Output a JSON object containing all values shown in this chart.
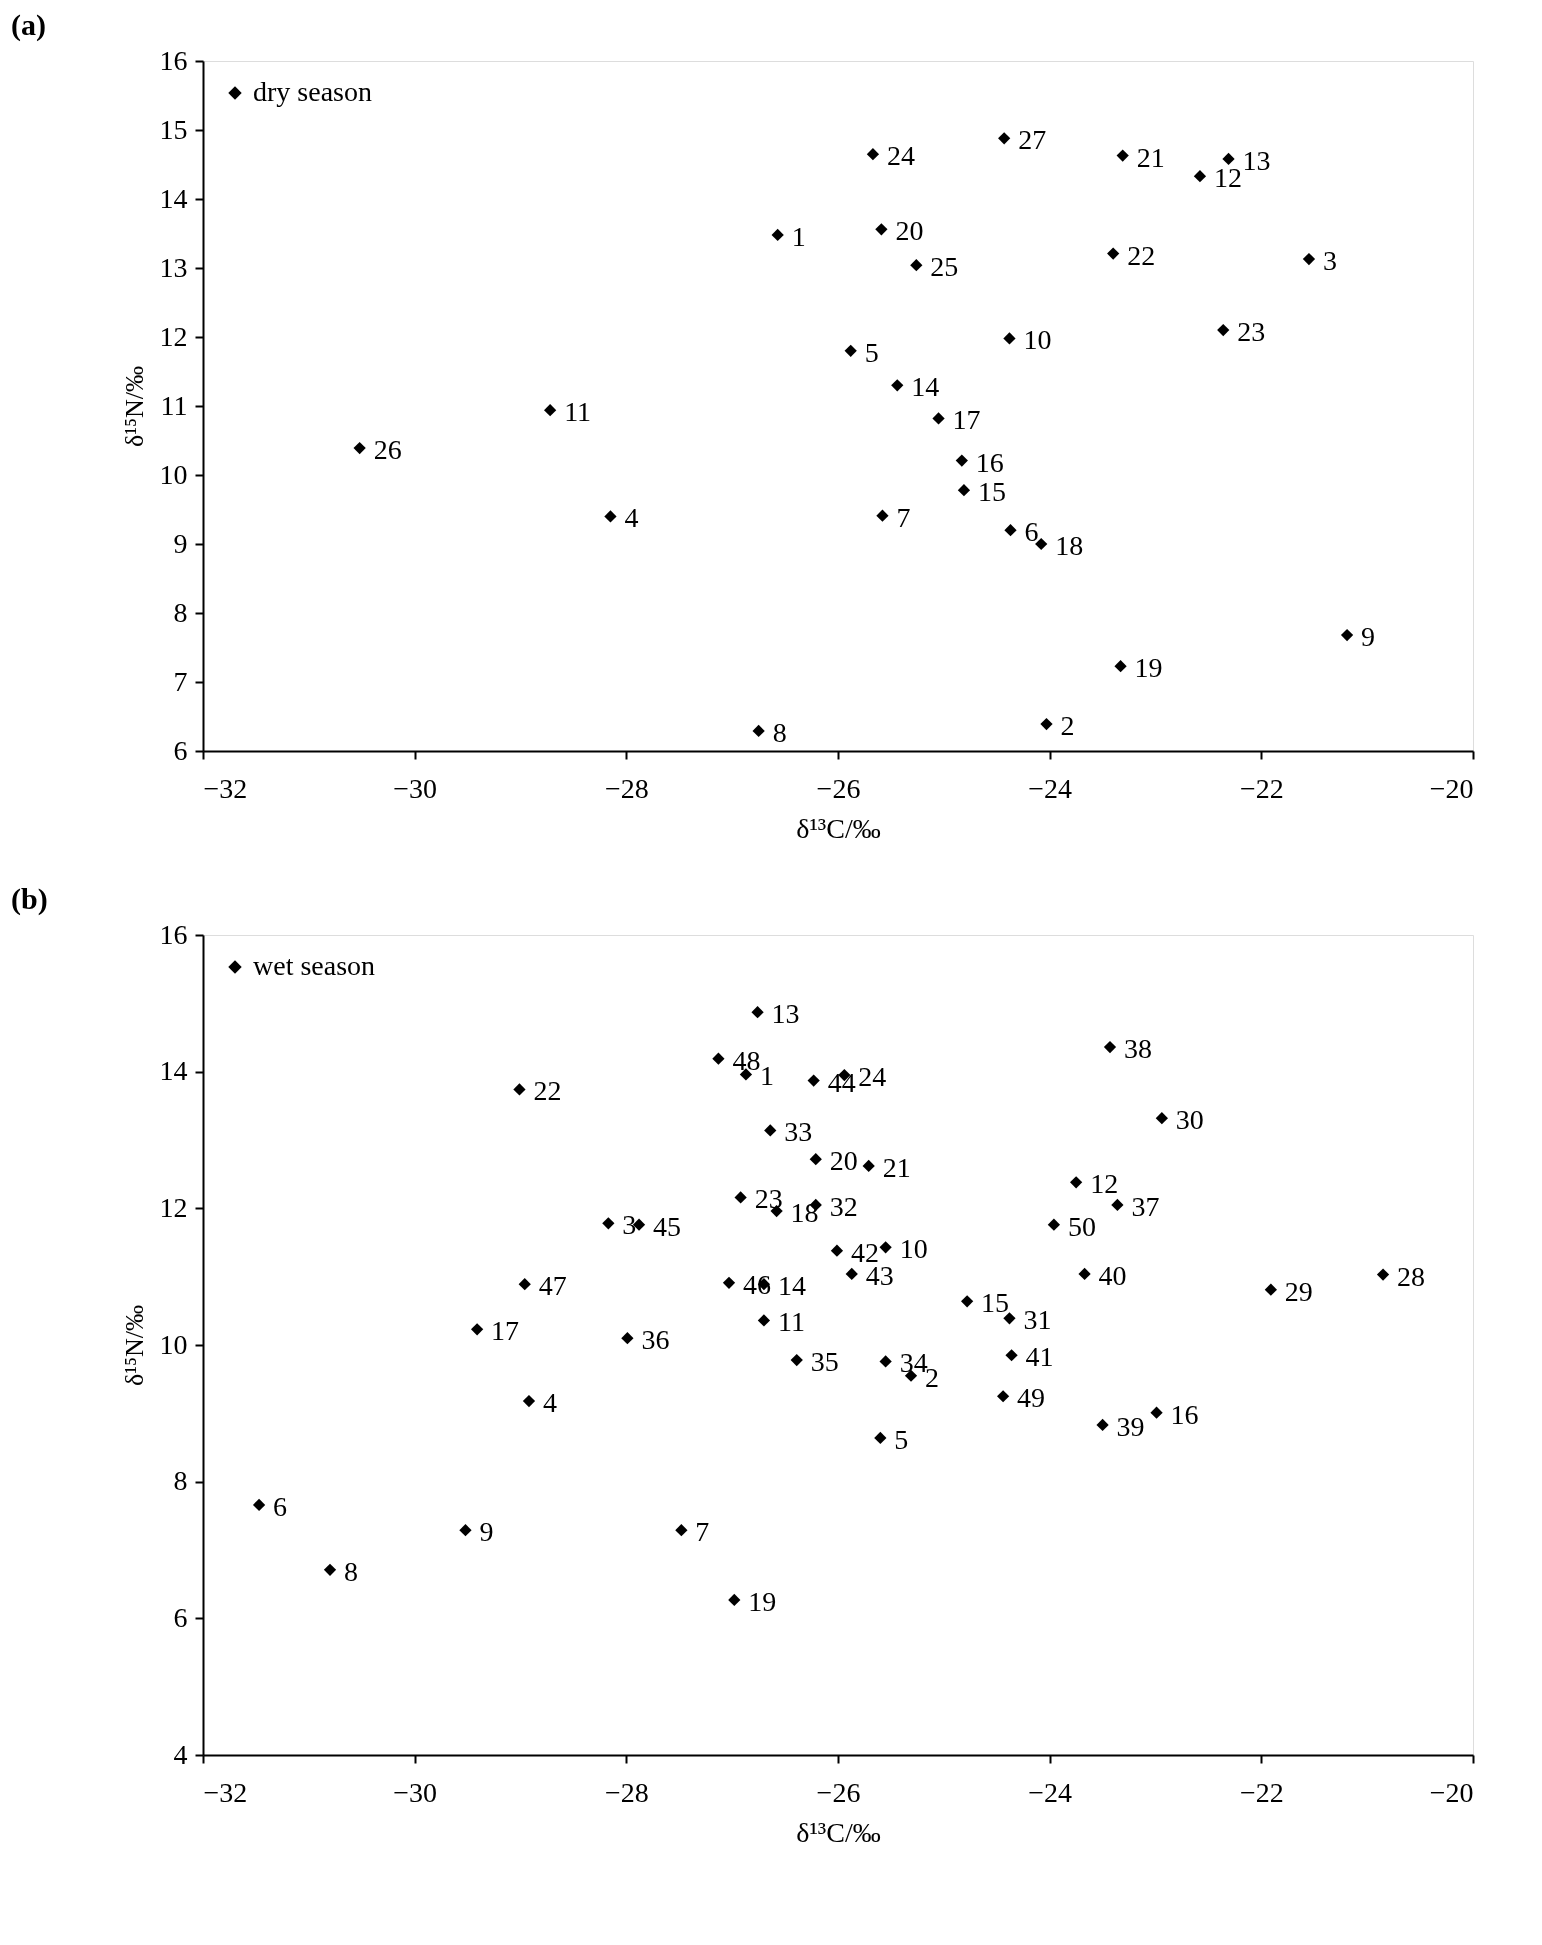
{
  "chart_data": [
    {
      "type": "scatter",
      "title": "(a)",
      "xlabel": "δ¹³C/‰",
      "ylabel": "δ¹⁵N/‰",
      "xlim": [
        -32,
        -20
      ],
      "xticks": [
        -32,
        -30,
        -28,
        -26,
        -24,
        -22,
        -20
      ],
      "ylim": [
        6,
        16
      ],
      "yticks": [
        6,
        7,
        8,
        9,
        10,
        11,
        12,
        13,
        14,
        15,
        16
      ],
      "grid": false,
      "legend": "top left",
      "marker": "diamond",
      "series": [
        {
          "name": "dry season",
          "color": "#000000",
          "x": [
            -26.57,
            -24.03,
            -21.55,
            -28.15,
            -25.88,
            -24.37,
            -25.58,
            -26.75,
            -21.19,
            -24.38,
            -28.72,
            -22.58,
            -22.31,
            -25.44,
            -24.81,
            -24.83,
            -25.05,
            -24.08,
            -23.33,
            -25.59,
            -23.31,
            -23.4,
            -22.36,
            -25.67,
            -25.26,
            -30.52,
            -24.43
          ],
          "values": [
            13.48,
            6.39,
            13.13,
            9.4,
            11.8,
            9.2,
            9.41,
            6.29,
            7.68,
            11.98,
            10.94,
            14.33,
            14.58,
            11.3,
            9.78,
            10.21,
            10.82,
            9.0,
            7.23,
            13.56,
            14.63,
            13.21,
            12.1,
            14.65,
            13.04,
            10.39,
            14.88
          ]
        }
      ],
      "annotations": [
        {
          "text": "1",
          "x": -26.57,
          "y": 13.48
        },
        {
          "text": "2",
          "x": -24.03,
          "y": 6.39
        },
        {
          "text": "3",
          "x": -21.55,
          "y": 13.13
        },
        {
          "text": "4",
          "x": -28.15,
          "y": 9.4
        },
        {
          "text": "5",
          "x": -25.88,
          "y": 11.8
        },
        {
          "text": "6",
          "x": -24.37,
          "y": 9.2
        },
        {
          "text": "7",
          "x": -25.58,
          "y": 9.41
        },
        {
          "text": "8",
          "x": -26.75,
          "y": 6.29
        },
        {
          "text": "9",
          "x": -21.19,
          "y": 7.68
        },
        {
          "text": "10",
          "x": -24.38,
          "y": 11.98
        },
        {
          "text": "11",
          "x": -28.72,
          "y": 10.94
        },
        {
          "text": "12",
          "x": -22.58,
          "y": 14.33
        },
        {
          "text": "13",
          "x": -22.31,
          "y": 14.58
        },
        {
          "text": "14",
          "x": -25.44,
          "y": 11.3
        },
        {
          "text": "15",
          "x": -24.81,
          "y": 9.78
        },
        {
          "text": "16",
          "x": -24.83,
          "y": 10.21
        },
        {
          "text": "17",
          "x": -25.05,
          "y": 10.82
        },
        {
          "text": "18",
          "x": -24.08,
          "y": 9.0
        },
        {
          "text": "19",
          "x": -23.33,
          "y": 7.23
        },
        {
          "text": "20",
          "x": -25.59,
          "y": 13.56
        },
        {
          "text": "21",
          "x": -23.31,
          "y": 14.63
        },
        {
          "text": "22",
          "x": -23.4,
          "y": 13.21
        },
        {
          "text": "23",
          "x": -22.36,
          "y": 12.1
        },
        {
          "text": "24",
          "x": -25.67,
          "y": 14.65
        },
        {
          "text": "25",
          "x": -25.26,
          "y": 13.04
        },
        {
          "text": "26",
          "x": -30.52,
          "y": 10.39
        },
        {
          "text": "27",
          "x": -24.43,
          "y": 14.88
        }
      ]
    },
    {
      "type": "scatter",
      "title": "(b)",
      "xlabel": "δ¹³C/‰",
      "ylabel": "δ¹⁵N/‰",
      "xlim": [
        -32,
        -20
      ],
      "xticks": [
        -32,
        -30,
        -28,
        -26,
        -24,
        -22,
        -20
      ],
      "ylim": [
        4,
        16
      ],
      "yticks": [
        4,
        6,
        8,
        10,
        12,
        14,
        16
      ],
      "grid": false,
      "legend": "top left",
      "marker": "diamond",
      "series": [
        {
          "name": "wet season",
          "color": "#000000",
          "x": [
            -26.87,
            -25.31,
            -28.17,
            -28.92,
            -25.6,
            -31.47,
            -27.48,
            -30.8,
            -29.52,
            -25.55,
            -26.7,
            -23.75,
            -26.76,
            -26.7,
            -24.78,
            -22.99,
            -29.41,
            -26.58,
            -26.98,
            -26.21,
            -25.71,
            -29.01,
            -26.92,
            -25.94,
            -20.85,
            -21.91,
            -22.94,
            -24.38,
            -26.21,
            -26.64,
            -25.55,
            -26.39,
            -27.99,
            -23.36,
            -23.43,
            -23.5,
            -23.67,
            -24.36,
            -26.01,
            -25.87,
            -26.23,
            -27.88,
            -27.03,
            -28.96,
            -27.13,
            -24.44,
            -23.96
          ],
          "values": [
            13.96,
            9.55,
            11.78,
            9.18,
            8.64,
            7.66,
            7.29,
            6.71,
            7.29,
            11.43,
            10.36,
            12.38,
            14.87,
            10.89,
            10.64,
            9.01,
            10.23,
            11.96,
            6.27,
            12.72,
            12.62,
            13.74,
            12.16,
            13.95,
            11.03,
            10.81,
            13.32,
            10.39,
            12.05,
            13.14,
            9.76,
            9.78,
            10.1,
            12.05,
            14.36,
            8.83,
            11.04,
            9.85,
            11.38,
            11.04,
            13.87,
            11.76,
            10.91,
            10.89,
            14.19,
            9.25,
            11.76
          ]
        }
      ],
      "annotations": [
        {
          "text": "1",
          "x": -26.87,
          "y": 13.96
        },
        {
          "text": "2",
          "x": -25.31,
          "y": 9.55
        },
        {
          "text": "3",
          "x": -28.17,
          "y": 11.78
        },
        {
          "text": "4",
          "x": -28.92,
          "y": 9.18
        },
        {
          "text": "5",
          "x": -25.6,
          "y": 8.64
        },
        {
          "text": "6",
          "x": -31.47,
          "y": 7.66
        },
        {
          "text": "7",
          "x": -27.48,
          "y": 7.29
        },
        {
          "text": "8",
          "x": -30.8,
          "y": 6.71
        },
        {
          "text": "9",
          "x": -29.52,
          "y": 7.29
        },
        {
          "text": "10",
          "x": -25.55,
          "y": 11.43
        },
        {
          "text": "11",
          "x": -26.7,
          "y": 10.36
        },
        {
          "text": "12",
          "x": -23.75,
          "y": 12.38
        },
        {
          "text": "13",
          "x": -26.76,
          "y": 14.87
        },
        {
          "text": "14",
          "x": -26.7,
          "y": 10.89
        },
        {
          "text": "15",
          "x": -24.78,
          "y": 10.64
        },
        {
          "text": "16",
          "x": -22.99,
          "y": 9.01
        },
        {
          "text": "17",
          "x": -29.41,
          "y": 10.23
        },
        {
          "text": "18",
          "x": -26.58,
          "y": 11.96
        },
        {
          "text": "19",
          "x": -26.98,
          "y": 6.27
        },
        {
          "text": "20",
          "x": -26.21,
          "y": 12.72
        },
        {
          "text": "21",
          "x": -25.71,
          "y": 12.62
        },
        {
          "text": "22",
          "x": -29.01,
          "y": 13.74
        },
        {
          "text": "23",
          "x": -26.92,
          "y": 12.16
        },
        {
          "text": "24",
          "x": -25.94,
          "y": 13.95
        },
        {
          "text": "28",
          "x": -20.85,
          "y": 11.03
        },
        {
          "text": "29",
          "x": -21.91,
          "y": 10.81
        },
        {
          "text": "30",
          "x": -22.94,
          "y": 13.32
        },
        {
          "text": "31",
          "x": -24.38,
          "y": 10.39
        },
        {
          "text": "32",
          "x": -26.21,
          "y": 12.05
        },
        {
          "text": "33",
          "x": -26.64,
          "y": 13.14
        },
        {
          "text": "34",
          "x": -25.55,
          "y": 9.76
        },
        {
          "text": "35",
          "x": -26.39,
          "y": 9.78
        },
        {
          "text": "36",
          "x": -27.99,
          "y": 10.1
        },
        {
          "text": "37",
          "x": -23.36,
          "y": 12.05
        },
        {
          "text": "38",
          "x": -23.43,
          "y": 14.36
        },
        {
          "text": "39",
          "x": -23.5,
          "y": 8.83
        },
        {
          "text": "40",
          "x": -23.67,
          "y": 11.04
        },
        {
          "text": "41",
          "x": -24.36,
          "y": 9.85
        },
        {
          "text": "42",
          "x": -26.01,
          "y": 11.38
        },
        {
          "text": "43",
          "x": -25.87,
          "y": 11.04
        },
        {
          "text": "44",
          "x": -26.23,
          "y": 13.87
        },
        {
          "text": "45",
          "x": -27.88,
          "y": 11.76
        },
        {
          "text": "46",
          "x": -27.03,
          "y": 10.91
        },
        {
          "text": "47",
          "x": -28.96,
          "y": 10.89
        },
        {
          "text": "48",
          "x": -27.13,
          "y": 14.19
        },
        {
          "text": "49",
          "x": -24.44,
          "y": 9.25
        },
        {
          "text": "50",
          "x": -23.96,
          "y": 11.76
        }
      ]
    }
  ]
}
